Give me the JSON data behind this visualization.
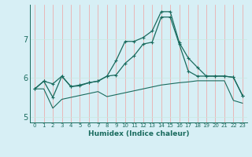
{
  "xlabel": "Humidex (Indice chaleur)",
  "background_color": "#d7eff5",
  "line_color": "#1a6b5e",
  "grid_color_v": "#f0a0a0",
  "grid_color_h": "#c8e8e0",
  "xlim": [
    -0.5,
    23.5
  ],
  "ylim": [
    4.85,
    7.9
  ],
  "yticks": [
    5,
    6,
    7
  ],
  "xticks": [
    0,
    1,
    2,
    3,
    4,
    5,
    6,
    7,
    8,
    9,
    10,
    11,
    12,
    13,
    14,
    15,
    16,
    17,
    18,
    19,
    20,
    21,
    22,
    23
  ],
  "line1_x": [
    0,
    1,
    2,
    3,
    4,
    5,
    6,
    7,
    8,
    9,
    10,
    11,
    12,
    13,
    14,
    15,
    16,
    17,
    18,
    19,
    20,
    21,
    22,
    23
  ],
  "line1_y": [
    5.72,
    5.92,
    5.5,
    6.05,
    5.78,
    5.82,
    5.88,
    5.92,
    6.05,
    6.45,
    6.95,
    6.95,
    7.05,
    7.22,
    7.72,
    7.72,
    6.92,
    6.52,
    6.28,
    6.05,
    6.05,
    6.05,
    6.02,
    5.55
  ],
  "line2_x": [
    0,
    1,
    2,
    3,
    4,
    5,
    6,
    7,
    8,
    9,
    10,
    11,
    12,
    13,
    14,
    15,
    16,
    17,
    18,
    19,
    20,
    21,
    22,
    23
  ],
  "line2_y": [
    5.72,
    5.92,
    5.85,
    6.05,
    5.78,
    5.8,
    5.88,
    5.92,
    6.05,
    6.08,
    6.38,
    6.58,
    6.88,
    6.93,
    7.58,
    7.58,
    6.88,
    6.18,
    6.05,
    6.05,
    6.05,
    6.05,
    6.02,
    5.55
  ],
  "line3_x": [
    0,
    1,
    2,
    3,
    4,
    5,
    6,
    7,
    8,
    9,
    10,
    11,
    12,
    13,
    14,
    15,
    16,
    17,
    18,
    19,
    20,
    21,
    22,
    23
  ],
  "line3_y": [
    5.72,
    5.72,
    5.22,
    5.45,
    5.5,
    5.55,
    5.6,
    5.65,
    5.52,
    5.57,
    5.62,
    5.67,
    5.72,
    5.77,
    5.82,
    5.85,
    5.88,
    5.9,
    5.93,
    5.93,
    5.93,
    5.93,
    5.42,
    5.35
  ]
}
